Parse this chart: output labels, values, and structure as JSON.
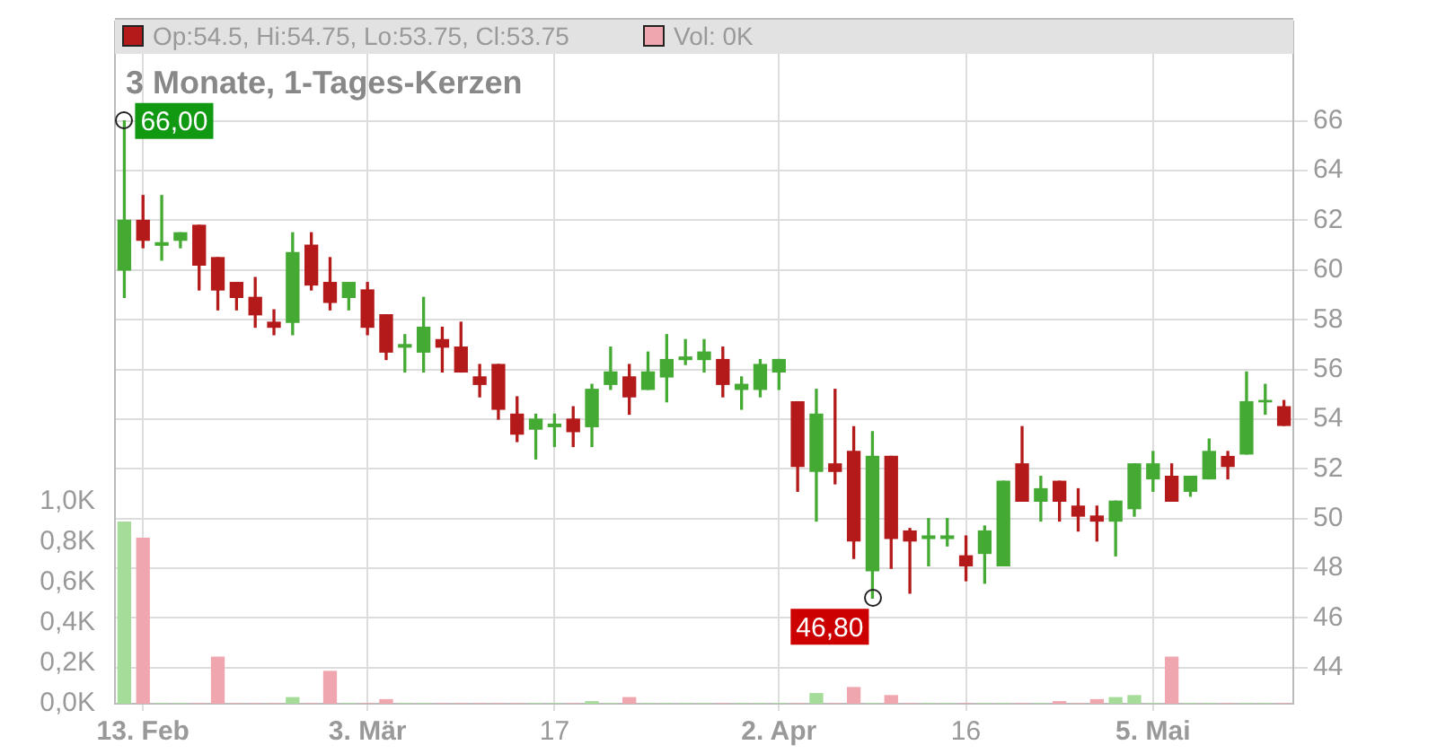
{
  "chart_data": {
    "type": "candlestick",
    "title": "3 Monate, 1-Tages-Kerzen",
    "categories": [
      null,
      "13. Feb",
      null,
      null,
      null,
      null,
      null,
      null,
      null,
      null,
      null,
      null,
      null,
      "3. Mär",
      null,
      null,
      null,
      null,
      null,
      null,
      null,
      null,
      null,
      "17",
      null,
      null,
      null,
      null,
      null,
      null,
      null,
      null,
      null,
      null,
      null,
      "2. Apr",
      null,
      null,
      null,
      null,
      null,
      null,
      null,
      null,
      null,
      "16",
      null,
      null,
      null,
      null,
      null,
      null,
      null,
      null,
      null,
      "5. Mai",
      null,
      null,
      null,
      null,
      null,
      null,
      null
    ],
    "series": [
      {
        "axis": "y2",
        "value_labels": [
          "66,00",
          null,
          null,
          null,
          null,
          null,
          null,
          null,
          null,
          null,
          null,
          null,
          null,
          null,
          null,
          null,
          null,
          null,
          null,
          null,
          null,
          null,
          null,
          null,
          null,
          null,
          null,
          null,
          null,
          null,
          null,
          null,
          null,
          null,
          null,
          null,
          null,
          null,
          null,
          null,
          "46,80",
          null,
          null,
          null,
          null,
          null,
          null,
          null,
          null,
          null,
          null,
          null,
          null,
          null,
          null,
          null,
          null,
          null,
          null,
          null,
          null,
          null,
          null
        ],
        "ohlc": [
          [
            60,
            66,
            58.9,
            62
          ],
          [
            62,
            63,
            60.9,
            61.2
          ],
          [
            61,
            63,
            60.4,
            61.1
          ],
          [
            61.2,
            61.5,
            60.9,
            61.5
          ],
          [
            61.8,
            61.8,
            59.2,
            60.2
          ],
          [
            60.5,
            60.5,
            58.4,
            59.2
          ],
          [
            59.5,
            59.5,
            58.4,
            58.9
          ],
          [
            58.9,
            59.7,
            57.7,
            58.2
          ],
          [
            57.9,
            58.4,
            57.4,
            57.7
          ],
          [
            57.9,
            61.5,
            57.4,
            60.7
          ],
          [
            61,
            61.5,
            59.2,
            59.4
          ],
          [
            59.5,
            60.5,
            58.4,
            58.7
          ],
          [
            58.9,
            59.5,
            58.4,
            59.5
          ],
          [
            59.2,
            59.5,
            57.4,
            57.7
          ],
          [
            58.2,
            58.2,
            56.4,
            56.7
          ],
          [
            56.9,
            57.4,
            55.9,
            57
          ],
          [
            56.7,
            58.9,
            55.9,
            57.7
          ],
          [
            57.2,
            57.7,
            55.9,
            56.9
          ],
          [
            56.9,
            57.9,
            55.9,
            55.9
          ],
          [
            55.7,
            56.2,
            54.9,
            55.4
          ],
          [
            56.2,
            56.2,
            54,
            54.4
          ],
          [
            54.2,
            54.9,
            53.1,
            53.4
          ],
          [
            53.6,
            54.2,
            52.4,
            54
          ],
          [
            53.7,
            54.2,
            52.9,
            53.8
          ],
          [
            54,
            54.5,
            52.9,
            53.5
          ],
          [
            53.7,
            55.4,
            52.9,
            55.2
          ],
          [
            55.4,
            56.9,
            55.2,
            55.9
          ],
          [
            55.7,
            56.2,
            54.2,
            54.9
          ],
          [
            55.2,
            56.7,
            55.2,
            55.9
          ],
          [
            55.7,
            57.4,
            54.7,
            56.4
          ],
          [
            56.4,
            57.2,
            56.2,
            56.5
          ],
          [
            56.4,
            57.2,
            55.9,
            56.7
          ],
          [
            56.4,
            56.9,
            54.9,
            55.4
          ],
          [
            55.2,
            55.7,
            54.4,
            55.4
          ],
          [
            55.2,
            56.4,
            54.9,
            56.2
          ],
          [
            55.9,
            56.4,
            55.2,
            56.4
          ],
          [
            54.7,
            54.7,
            51.1,
            52.1
          ],
          [
            51.9,
            55.2,
            49.9,
            54.2
          ],
          [
            52.2,
            55.2,
            51.4,
            51.9
          ],
          [
            52.7,
            53.7,
            48.4,
            49.1
          ],
          [
            47.9,
            53.5,
            46.8,
            52.5
          ],
          [
            52.5,
            52.5,
            48,
            49.2
          ],
          [
            49.5,
            49.6,
            47,
            49.1
          ],
          [
            49.2,
            50,
            48.1,
            49.3
          ],
          [
            49.2,
            50,
            48.9,
            49.3
          ],
          [
            48.5,
            49.3,
            47.5,
            48.1
          ],
          [
            48.6,
            49.7,
            47.4,
            49.5
          ],
          [
            48.1,
            51.5,
            48.1,
            51.5
          ],
          [
            52.2,
            53.7,
            50.7,
            50.7
          ],
          [
            50.7,
            51.7,
            49.9,
            51.2
          ],
          [
            51.5,
            51.5,
            49.9,
            50.7
          ],
          [
            50.5,
            51.2,
            49.5,
            50.1
          ],
          [
            50.1,
            50.5,
            49.1,
            49.9
          ],
          [
            49.9,
            50.7,
            48.5,
            50.7
          ],
          [
            50.4,
            52.2,
            50.1,
            52.2
          ],
          [
            51.6,
            52.7,
            51.1,
            52.2
          ],
          [
            51.7,
            52.2,
            50.7,
            50.7
          ],
          [
            51.1,
            51.7,
            50.9,
            51.7
          ],
          [
            51.6,
            53.2,
            51.6,
            52.7
          ],
          [
            52.5,
            52.7,
            51.6,
            52.1
          ],
          [
            52.6,
            55.9,
            52.6,
            54.7
          ],
          [
            54.7,
            55.4,
            54.2,
            54.75
          ],
          [
            54.5,
            54.75,
            53.75,
            53.75
          ]
        ],
        "colors": [
          "#44aa33",
          "#b41a1a",
          "#44aa33",
          "#44aa33",
          "#b41a1a",
          "#b41a1a",
          "#b41a1a",
          "#b41a1a",
          "#b41a1a",
          "#44aa33",
          "#b41a1a",
          "#b41a1a",
          "#44aa33",
          "#b41a1a",
          "#b41a1a",
          "#44aa33",
          "#44aa33",
          "#b41a1a",
          "#b41a1a",
          "#b41a1a",
          "#b41a1a",
          "#b41a1a",
          "#44aa33",
          "#44aa33",
          "#b41a1a",
          "#44aa33",
          "#44aa33",
          "#b41a1a",
          "#44aa33",
          "#44aa33",
          "#44aa33",
          "#44aa33",
          "#b41a1a",
          "#44aa33",
          "#44aa33",
          "#44aa33",
          "#b41a1a",
          "#44aa33",
          "#b41a1a",
          "#b41a1a",
          "#44aa33",
          "#b41a1a",
          "#b41a1a",
          "#44aa33",
          "#44aa33",
          "#b41a1a",
          "#44aa33",
          "#44aa33",
          "#b41a1a",
          "#44aa33",
          "#b41a1a",
          "#b41a1a",
          "#b41a1a",
          "#44aa33",
          "#44aa33",
          "#44aa33",
          "#b41a1a",
          "#44aa33",
          "#44aa33",
          "#b41a1a",
          "#44aa33",
          "#44aa33",
          "#b41a1a"
        ]
      },
      {
        "type": "bar",
        "axis": "y",
        "values": [
          0.9,
          0.82,
          0,
          0,
          0,
          0.23,
          0,
          0,
          0,
          0.03,
          0,
          0.16,
          0,
          0,
          0.02,
          0,
          0,
          0,
          0,
          0,
          0,
          0,
          0,
          0,
          0,
          0.01,
          0,
          0.03,
          0,
          0,
          0,
          0,
          0,
          0,
          0,
          0,
          0,
          0.05,
          0,
          0.08,
          0,
          0.04,
          0,
          0,
          0,
          0,
          0,
          0,
          0,
          0,
          0.01,
          0,
          0.02,
          0.03,
          0.04,
          0,
          0.23,
          0,
          0,
          0,
          0,
          0,
          0
        ],
        "colors": [
          "#a6dc9a",
          "#f0a6ae",
          "#a6dc9a",
          "#a6dc9a",
          "#f0a6ae",
          "#f0a6ae",
          "#f0a6ae",
          "#f0a6ae",
          "#f0a6ae",
          "#a6dc9a",
          "#f0a6ae",
          "#f0a6ae",
          "#a6dc9a",
          "#f0a6ae",
          "#f0a6ae",
          "#a6dc9a",
          "#a6dc9a",
          "#f0a6ae",
          "#f0a6ae",
          "#f0a6ae",
          "#f0a6ae",
          "#f0a6ae",
          "#a6dc9a",
          "#a6dc9a",
          "#f0a6ae",
          "#a6dc9a",
          "#a6dc9a",
          "#f0a6ae",
          "#a6dc9a",
          "#a6dc9a",
          "#a6dc9a",
          "#a6dc9a",
          "#f0a6ae",
          "#a6dc9a",
          "#a6dc9a",
          "#a6dc9a",
          "#f0a6ae",
          "#a6dc9a",
          "#f0a6ae",
          "#f0a6ae",
          "#a6dc9a",
          "#f0a6ae",
          "#f0a6ae",
          "#a6dc9a",
          "#a6dc9a",
          "#f0a6ae",
          "#a6dc9a",
          "#a6dc9a",
          "#f0a6ae",
          "#a6dc9a",
          "#f0a6ae",
          "#f0a6ae",
          "#f0a6ae",
          "#a6dc9a",
          "#a6dc9a",
          "#a6dc9a",
          "#f0a6ae",
          "#a6dc9a",
          "#a6dc9a",
          "#f0a6ae",
          "#a6dc9a",
          "#a6dc9a",
          "#f0a6ae"
        ]
      }
    ],
    "ylim": [
      0,
      3.38
    ],
    "yticks": [
      {
        "value": 0,
        "label": "0,0K"
      },
      {
        "value": 0.2,
        "label": "0,2K"
      },
      {
        "value": 0.4,
        "label": "0,4K"
      },
      {
        "value": 0.6,
        "label": "0,6K"
      },
      {
        "value": 0.8,
        "label": "0,8K"
      },
      {
        "value": 1,
        "label": "1,0K"
      }
    ],
    "y2lim": [
      42.55,
      70
    ],
    "y2ticks": [
      44,
      46,
      48,
      50,
      52,
      54,
      56,
      58,
      60,
      62,
      64,
      66
    ],
    "grid": true,
    "annotations": [
      "Op:54.5, Hi:54.75, Lo:53.75, Cl:53.75",
      "Vol: 0K"
    ]
  }
}
